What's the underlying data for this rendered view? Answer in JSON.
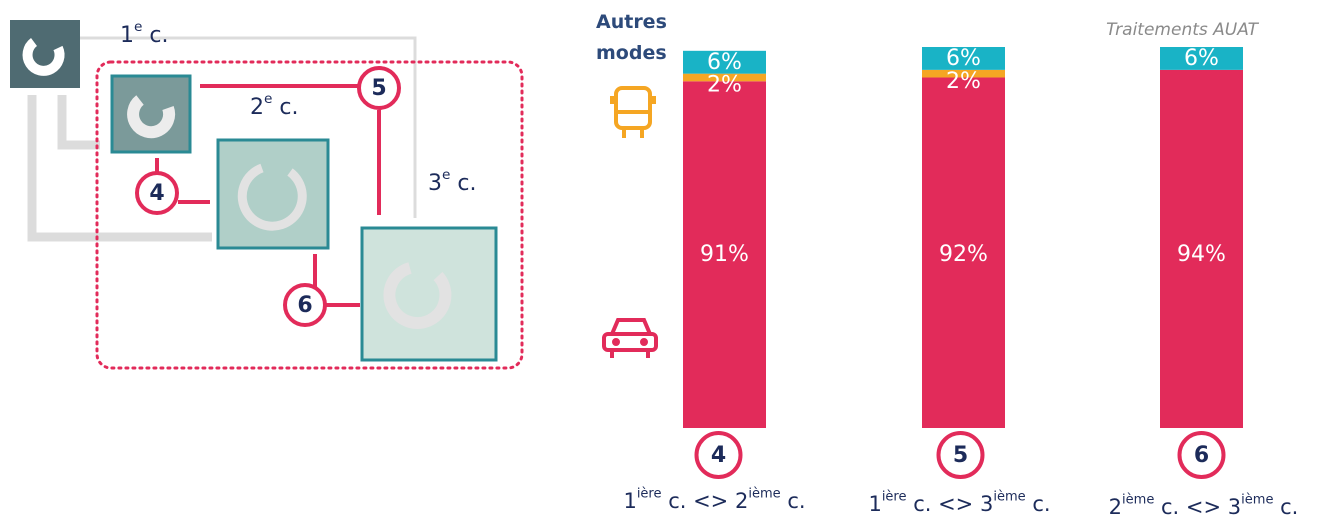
{
  "source": "Traitements AUAT",
  "diagram": {
    "rings": [
      [
        "1",
        "e",
        " c."
      ],
      [
        "2",
        "e",
        " c."
      ],
      [
        "3",
        "e",
        " c."
      ]
    ],
    "markers": [
      "4",
      "5",
      "6"
    ]
  },
  "chart_data": {
    "type": "stacked-bar",
    "category_numbers": [
      "4",
      "5",
      "6"
    ],
    "categories": [
      [
        "1",
        "ière",
        " c. <> 2",
        "ième",
        " c."
      ],
      [
        "1",
        "ière",
        " c. <> 3",
        "ième",
        " c."
      ],
      [
        "2",
        "ième",
        " c. <> 3",
        "ième",
        " c."
      ]
    ],
    "series": [
      {
        "color": "#e22b5a",
        "values": [
          91,
          92,
          94
        ],
        "value_labels": [
          "91%",
          "92%",
          "94%"
        ]
      },
      {
        "color": "#f5a623",
        "values": [
          2,
          2,
          null
        ],
        "value_labels": [
          "2%",
          "2%",
          null
        ]
      },
      {
        "name": "Autres modes",
        "color": "#19b3c6",
        "values": [
          6,
          6,
          6
        ],
        "value_labels": [
          "6%",
          "6%",
          "6%"
        ]
      }
    ]
  }
}
